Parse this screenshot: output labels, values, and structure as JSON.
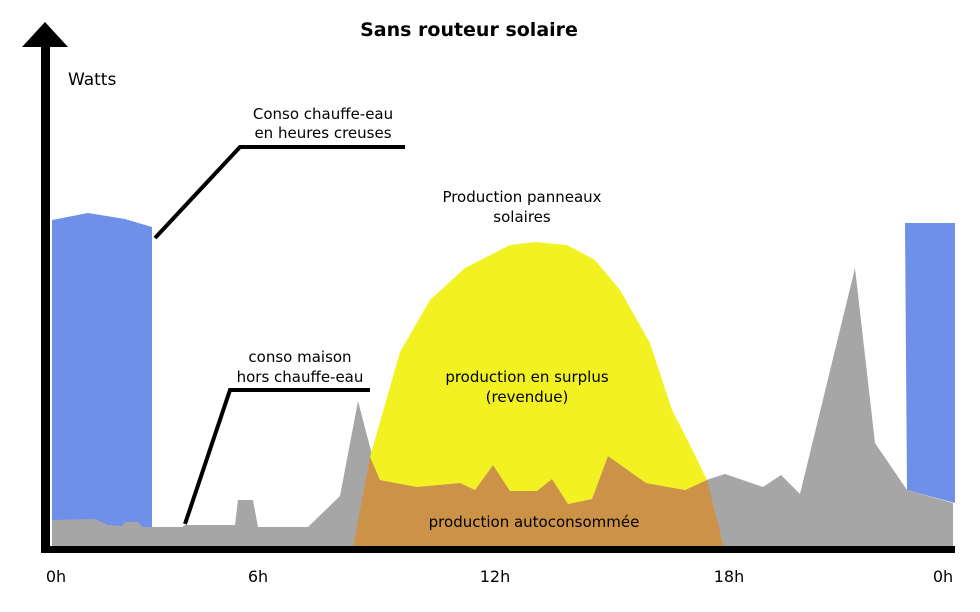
{
  "title": "Sans routeur solaire",
  "y_axis_label": "Watts",
  "x_ticks": [
    "0h",
    "6h",
    "12h",
    "18h",
    "0h"
  ],
  "annotations": {
    "water_heater": [
      "Conso chauffe-eau",
      "en heures creuses"
    ],
    "house": [
      "conso maison",
      "hors chauffe-eau"
    ],
    "solar": [
      "Production panneaux",
      "solaires"
    ],
    "surplus": [
      "production en surplus",
      "(revendue)"
    ],
    "self_consumed": "production autoconsommée"
  },
  "colors": {
    "water_heater": "#6f90e8",
    "house": "#a5a6a5",
    "solar_surplus": "#f2f222",
    "self_consumed": "#cc9348",
    "axis": "#000000"
  }
}
